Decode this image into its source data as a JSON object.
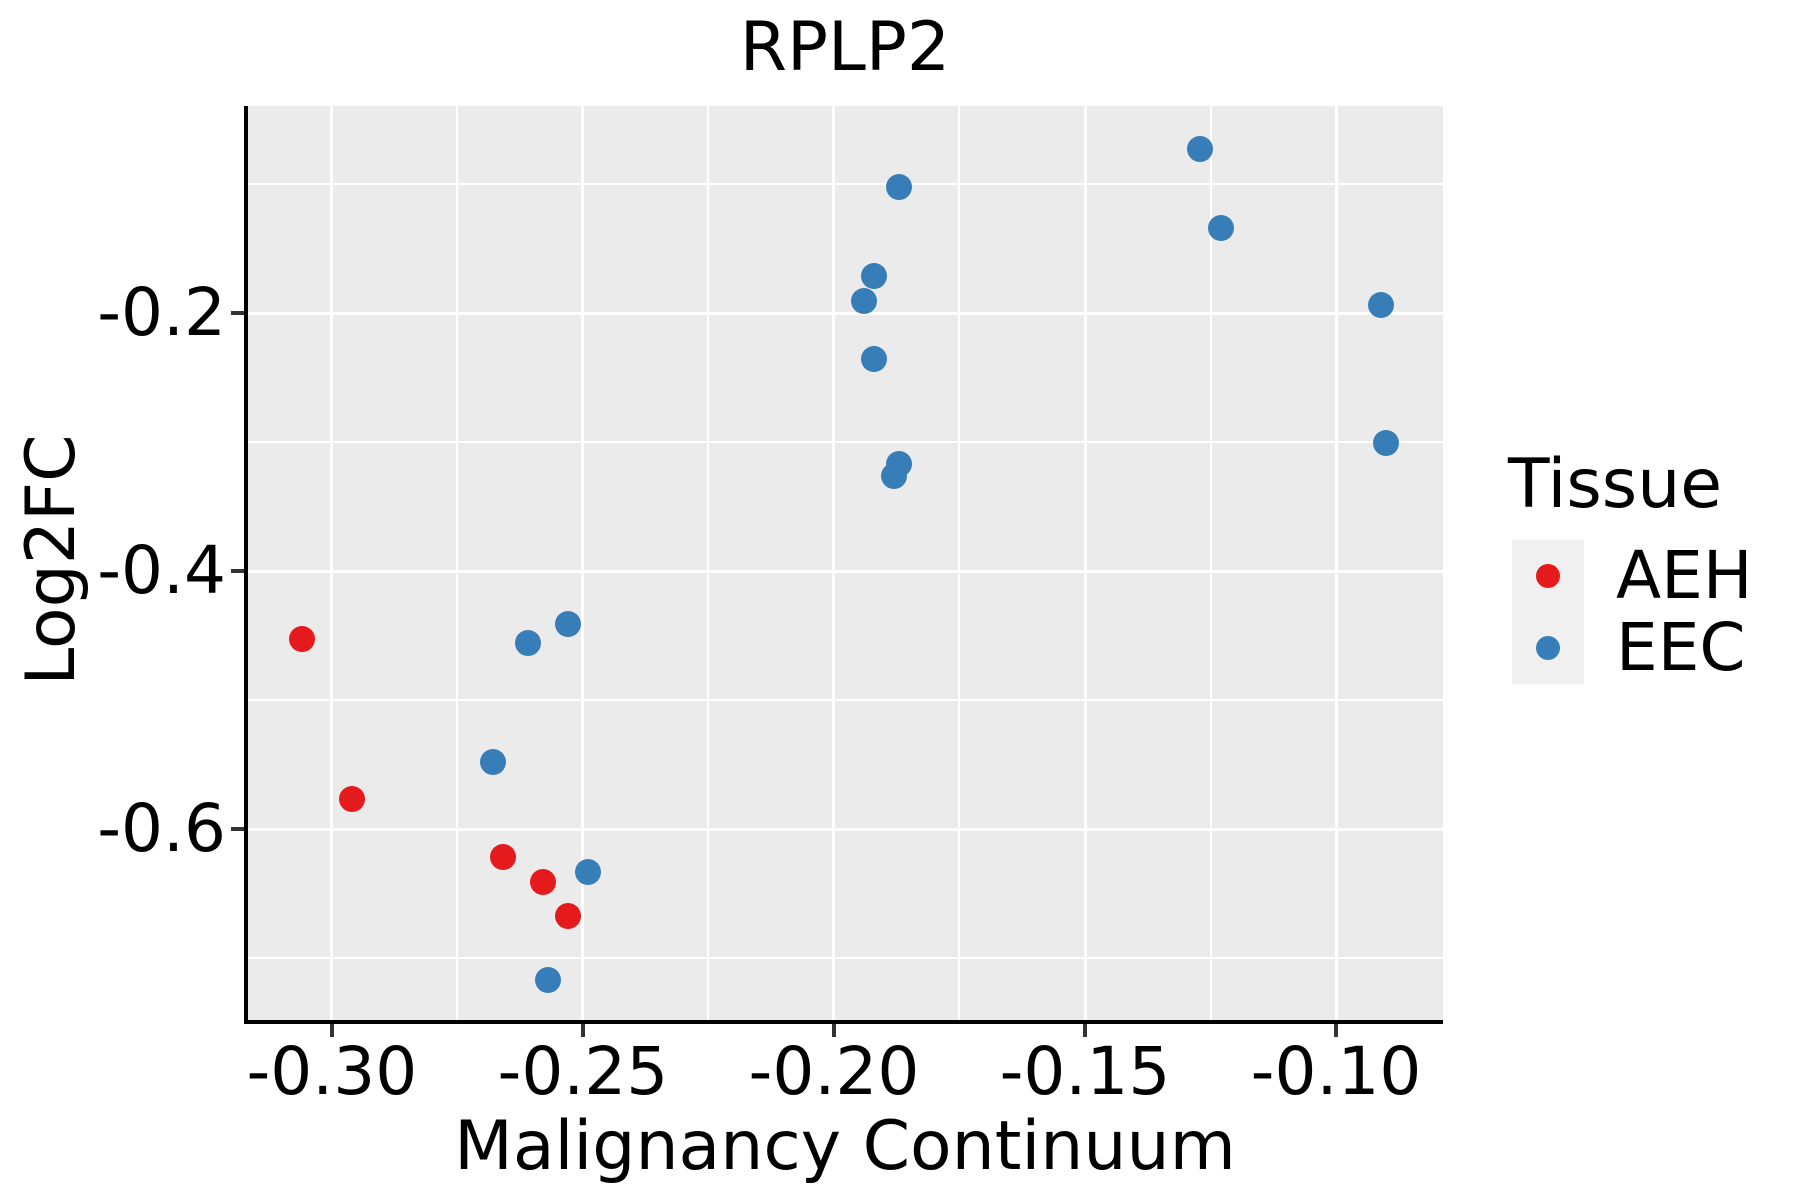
{
  "title": "RPLP2",
  "axes": {
    "x": {
      "label": "Malignancy Continuum",
      "lim": [
        -0.3167,
        -0.0787
      ],
      "major_ticks": [
        -0.3,
        -0.25,
        -0.2,
        -0.15,
        -0.1
      ],
      "major_tick_labels": [
        "-0.30",
        "-0.25",
        "-0.20",
        "-0.15",
        "-0.10"
      ],
      "minor_ticks": [
        -0.275,
        -0.225,
        -0.175,
        -0.125
      ]
    },
    "y": {
      "label": "Log2FC",
      "lim": [
        -0.748,
        -0.0395
      ],
      "major_ticks": [
        -0.2,
        -0.4,
        -0.6
      ],
      "major_tick_labels": [
        "-0.2",
        "-0.4",
        "-0.6"
      ],
      "minor_ticks": [
        -0.1,
        -0.3,
        -0.5,
        -0.7
      ]
    }
  },
  "legend": {
    "title": "Tissue",
    "entries": [
      {
        "label": "AEH",
        "color": "#E41A1C"
      },
      {
        "label": "EEC",
        "color": "#377EB8"
      }
    ]
  },
  "colors": {
    "panel_bg": "#EBEBEB",
    "grid": "#FFFFFF",
    "axis_line": "#000000",
    "tick": "#333333",
    "text": "#000000",
    "legend_key_bg": "#F0F0F0",
    "aeh": "#E41A1C",
    "eec": "#377EB8"
  },
  "chart_data": {
    "type": "scatter",
    "title": "RPLP2",
    "xlabel": "Malignancy Continuum",
    "ylabel": "Log2FC",
    "xlim": [
      -0.3167,
      -0.0787
    ],
    "ylim": [
      -0.748,
      -0.0395
    ],
    "x_major_gridlines": [
      -0.3,
      -0.25,
      -0.2,
      -0.15,
      -0.1
    ],
    "x_minor_gridlines": [
      -0.275,
      -0.225,
      -0.175,
      -0.125
    ],
    "y_major_gridlines": [
      -0.2,
      -0.4,
      -0.6
    ],
    "y_minor_gridlines": [
      -0.1,
      -0.3,
      -0.5,
      -0.7
    ],
    "grid": "white major+minor on gray panel",
    "legend_title": "Tissue",
    "legend_position": "right",
    "series": [
      {
        "name": "AEH",
        "color": "#E41A1C",
        "points": [
          [
            -0.306,
            -0.453
          ],
          [
            -0.296,
            -0.577
          ],
          [
            -0.266,
            -0.622
          ],
          [
            -0.258,
            -0.641
          ],
          [
            -0.253,
            -0.667
          ]
        ]
      },
      {
        "name": "EEC",
        "color": "#377EB8",
        "points": [
          [
            -0.127,
            -0.073
          ],
          [
            -0.123,
            -0.134
          ],
          [
            -0.187,
            -0.102
          ],
          [
            -0.192,
            -0.171
          ],
          [
            -0.194,
            -0.191
          ],
          [
            -0.192,
            -0.236
          ],
          [
            -0.187,
            -0.317
          ],
          [
            -0.188,
            -0.326
          ],
          [
            -0.091,
            -0.194
          ],
          [
            -0.09,
            -0.301
          ],
          [
            -0.253,
            -0.441
          ],
          [
            -0.261,
            -0.456
          ],
          [
            -0.268,
            -0.548
          ],
          [
            -0.249,
            -0.633
          ],
          [
            -0.257,
            -0.717
          ]
        ]
      }
    ]
  }
}
